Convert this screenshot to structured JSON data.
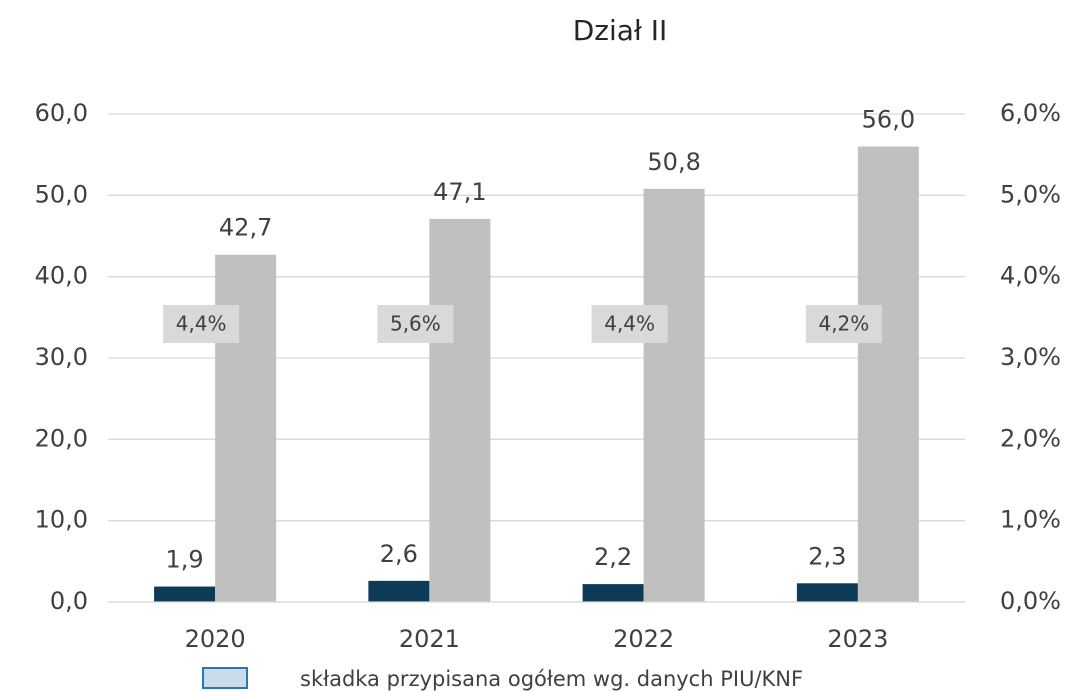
{
  "chart_data": {
    "type": "bar",
    "title": "Dział II",
    "categories": [
      "2020",
      "2021",
      "2022",
      "2023"
    ],
    "series": [
      {
        "color": "#0d3a56",
        "values": [
          1.9,
          2.6,
          2.2,
          2.3
        ],
        "value_labels": [
          "1,9",
          "2,6",
          "2,2",
          "2,3"
        ]
      },
      {
        "color": "#c0c0c0",
        "values": [
          42.7,
          47.1,
          50.8,
          56.0
        ],
        "value_labels": [
          "42,7",
          "47,1",
          "50,8",
          "56,0"
        ]
      },
      {
        "axis": "y2",
        "color": "#d9d9d9",
        "values": [
          4.4,
          5.6,
          4.4,
          4.2
        ],
        "value_labels": [
          "4,4%",
          "5,6%",
          "4,4%",
          "4,2%"
        ]
      }
    ],
    "legend": {
      "label": "składka przypisana ogółem wg. danych PIU/KNF",
      "color": "#c9dcec",
      "border": "#2e75b6"
    },
    "ylim": [
      0,
      60
    ],
    "yticks": [
      {
        "value": 0,
        "label": "0,0"
      },
      {
        "value": 10,
        "label": "10,0"
      },
      {
        "value": 20,
        "label": "20,0"
      },
      {
        "value": 30,
        "label": "30,0"
      },
      {
        "value": 40,
        "label": "40,0"
      },
      {
        "value": 50,
        "label": "50,0"
      },
      {
        "value": 60,
        "label": "60,0"
      }
    ],
    "y2lim": [
      0,
      6
    ],
    "y2ticks": [
      {
        "value": 0,
        "label": "0,0%"
      },
      {
        "value": 1,
        "label": "1,0%"
      },
      {
        "value": 2,
        "label": "2,0%"
      },
      {
        "value": 3,
        "label": "3,0%"
      },
      {
        "value": 4,
        "label": "4,0%"
      },
      {
        "value": 5,
        "label": "5,0%"
      },
      {
        "value": 6,
        "label": "6,0%"
      }
    ],
    "grid": true
  }
}
